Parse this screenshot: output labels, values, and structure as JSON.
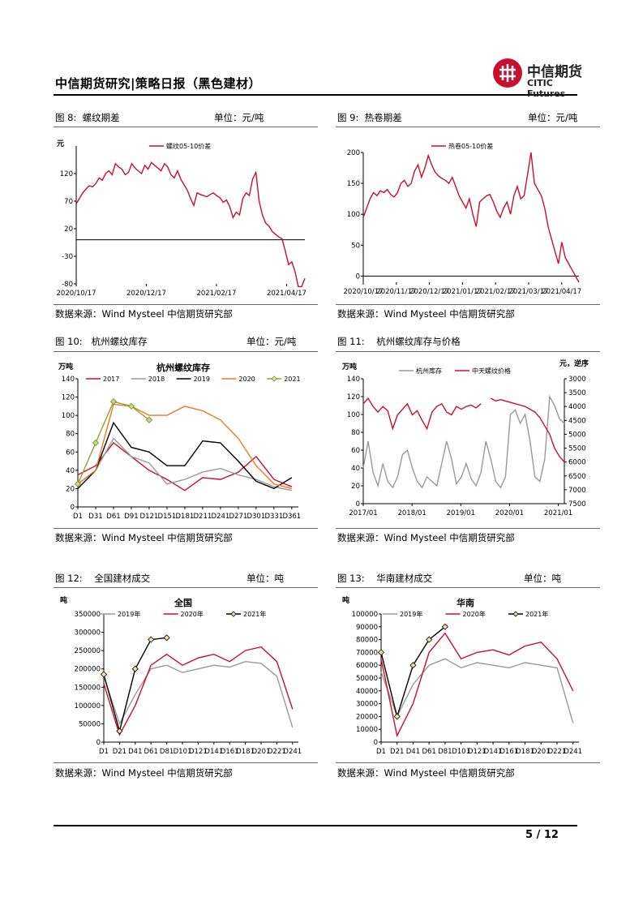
{
  "header": {
    "title": "中信期货研究|策略日报（黑色建材）",
    "logo_cn": "中信期货",
    "logo_en": "CITIC Futures"
  },
  "footer": {
    "page": "5 / 12"
  },
  "colors": {
    "red": "#c8102e",
    "gray": "#999999",
    "black": "#000000",
    "orange": "#f07820",
    "olive": "#8ea33a"
  },
  "figures": [
    {
      "label": "图 8:",
      "title": "螺纹期差",
      "unit": "单位：元/吨",
      "source": "数据来源：Wind Mysteel 中信期货研究部"
    },
    {
      "label": "图 9:",
      "title": "热卷期差",
      "unit": "单位：元/吨",
      "source": "数据来源：Wind Mysteel 中信期货研究部"
    },
    {
      "label": "图 10:",
      "title": "杭州螺纹库存",
      "unit": "单位：元/吨",
      "source": "数据来源：Wind Mysteel 中信期货研究部"
    },
    {
      "label": "图 11:",
      "title": "杭州螺纹库存与价格",
      "unit": "",
      "source": "数据来源：Wind Mysteel 中信期货研究部"
    },
    {
      "label": "图 12:",
      "title": "全国建材成交",
      "unit": "单位：吨",
      "source": "数据来源：Wind Mysteel 中信期货研究部"
    },
    {
      "label": "图 13:",
      "title": "华南建材成交",
      "unit": "单位：吨",
      "source": "数据来源：Wind Mysteel 中信期货研究部"
    }
  ],
  "chart_data": [
    {
      "type": "line",
      "title": "",
      "ylabel": "元",
      "ylim": [
        -80,
        170
      ],
      "yticks": [
        -80,
        -30,
        20,
        70,
        120
      ],
      "xticks": [
        "2020/10/17",
        "2020/12/17",
        "2021/02/17",
        "2021/04/17"
      ],
      "zero_line": 0,
      "series": [
        {
          "name": "螺纹05-10价差",
          "color": "#c8102e",
          "values": [
            65,
            75,
            85,
            92,
            98,
            96,
            102,
            112,
            108,
            120,
            125,
            118,
            138,
            132,
            128,
            118,
            122,
            138,
            130,
            125,
            120,
            135,
            128,
            140,
            135,
            130,
            125,
            138,
            132,
            118,
            112,
            125,
            110,
            100,
            90,
            75,
            62,
            85,
            82,
            80,
            78,
            82,
            85,
            80,
            76,
            68,
            72,
            60,
            40,
            50,
            45,
            75,
            85,
            80,
            110,
            122,
            70,
            45,
            30,
            25,
            15,
            10,
            5,
            2,
            -20,
            -45,
            -40,
            -58,
            -85,
            -85,
            -70
          ]
        }
      ]
    },
    {
      "type": "line",
      "title": "",
      "ylabel": "",
      "ylim": [
        -10,
        200
      ],
      "yticks": [
        0,
        50,
        100,
        150,
        200
      ],
      "xticks": [
        "2020/10/17",
        "2020/11/17",
        "2020/12/17",
        "2021/01/17",
        "2021/02/17",
        "2021/03/17",
        "2021/04/17"
      ],
      "zero_line": 0,
      "series": [
        {
          "name": "热卷05-10价差",
          "color": "#c8102e",
          "values": [
            95,
            110,
            125,
            135,
            130,
            138,
            135,
            140,
            132,
            128,
            135,
            150,
            155,
            145,
            150,
            170,
            180,
            160,
            175,
            195,
            180,
            168,
            162,
            158,
            155,
            150,
            160,
            145,
            130,
            120,
            110,
            125,
            100,
            80,
            120,
            125,
            130,
            132,
            120,
            105,
            95,
            110,
            120,
            100,
            130,
            145,
            125,
            130,
            165,
            200,
            150,
            140,
            130,
            110,
            80,
            60,
            40,
            20,
            55,
            30,
            20,
            10,
            0,
            -10
          ]
        }
      ]
    },
    {
      "type": "line",
      "title": "杭州螺纹库存",
      "ylabel": "万吨",
      "ylim": [
        0,
        140
      ],
      "yticks": [
        0,
        20,
        40,
        60,
        80,
        100,
        120,
        140
      ],
      "xticks": [
        "D1",
        "D31",
        "D61",
        "D91",
        "D121",
        "D151",
        "D181",
        "D211",
        "D241",
        "D271",
        "D301",
        "D331",
        "D361"
      ],
      "x": [
        1,
        31,
        61,
        91,
        121,
        151,
        181,
        211,
        241,
        271,
        301,
        331,
        361
      ],
      "series": [
        {
          "name": "2017",
          "color": "#c8102e",
          "values": [
            35,
            45,
            70,
            55,
            40,
            30,
            18,
            32,
            30,
            38,
            55,
            30,
            22
          ]
        },
        {
          "name": "2018",
          "color": "#999999",
          "values": [
            25,
            40,
            75,
            55,
            48,
            25,
            30,
            38,
            42,
            35,
            30,
            22,
            18
          ]
        },
        {
          "name": "2019",
          "color": "#000000",
          "values": [
            20,
            40,
            92,
            65,
            60,
            45,
            45,
            72,
            70,
            50,
            28,
            20,
            32
          ]
        },
        {
          "name": "2020",
          "color": "#f07820",
          "values": [
            25,
            40,
            112,
            110,
            100,
            100,
            110,
            105,
            95,
            75,
            45,
            25,
            20
          ]
        },
        {
          "name": "2021",
          "color": "#8ea33a",
          "values": [
            25,
            70,
            115,
            110,
            95,
            null,
            null,
            null,
            null,
            null,
            null,
            null,
            null
          ]
        }
      ]
    },
    {
      "type": "line",
      "title": "",
      "ylabel": "万吨",
      "y2label": "元，逆序",
      "ylim": [
        0,
        140
      ],
      "y2lim": [
        3000,
        7500
      ],
      "yticks": [
        0,
        20,
        40,
        60,
        80,
        100,
        120,
        140
      ],
      "y2ticks": [
        3000,
        3500,
        4000,
        4500,
        5000,
        5500,
        6000,
        6500,
        7000,
        7500
      ],
      "xticks": [
        "2017/01",
        "2018/01",
        "2019/01",
        "2020/01",
        "2021/01"
      ],
      "series": [
        {
          "name": "杭州库存",
          "color": "#999999",
          "axis": "left",
          "values": [
            40,
            70,
            35,
            20,
            45,
            25,
            18,
            30,
            55,
            60,
            40,
            25,
            18,
            30,
            25,
            20,
            45,
            70,
            50,
            22,
            30,
            45,
            28,
            20,
            35,
            70,
            50,
            25,
            18,
            30,
            100,
            105,
            90,
            100,
            70,
            30,
            25,
            50,
            120,
            110,
            95,
            90
          ]
        },
        {
          "name": "中天螺纹价格",
          "color": "#c8102e",
          "axis": "right",
          "values": [
            3900,
            3700,
            4000,
            4200,
            4000,
            4150,
            4800,
            4300,
            4100,
            3900,
            4300,
            4150,
            4500,
            4800,
            4200,
            4000,
            3900,
            4200,
            4300,
            4000,
            4100,
            4000,
            3950,
            4050,
            3900,
            null,
            3700,
            3800,
            3750,
            3800,
            3850,
            3900,
            3950,
            4000,
            4100,
            4200,
            4400,
            4700,
            5000,
            5500,
            5800,
            6000
          ]
        }
      ]
    },
    {
      "type": "line",
      "title": "全国",
      "ylabel": "吨",
      "ylim": [
        0,
        350000
      ],
      "yticks": [
        0,
        50000,
        100000,
        150000,
        200000,
        250000,
        300000,
        350000
      ],
      "xticks": [
        "D1",
        "D21",
        "D41",
        "D61",
        "D81",
        "D101",
        "D121",
        "D141",
        "D161",
        "D181",
        "D201",
        "D221",
        "D241"
      ],
      "x": [
        1,
        21,
        41,
        61,
        81,
        101,
        121,
        141,
        161,
        181,
        201,
        221,
        241
      ],
      "series": [
        {
          "name": "2019年",
          "color": "#999999",
          "values": [
            180000,
            50000,
            130000,
            200000,
            210000,
            190000,
            200000,
            210000,
            205000,
            220000,
            215000,
            180000,
            40000
          ]
        },
        {
          "name": "2020年",
          "color": "#c8102e",
          "values": [
            160000,
            20000,
            100000,
            210000,
            240000,
            210000,
            230000,
            240000,
            220000,
            250000,
            260000,
            220000,
            90000
          ]
        },
        {
          "name": "2021年",
          "color": "#000000",
          "values": [
            185000,
            30000,
            200000,
            280000,
            285000,
            null,
            null,
            null,
            null,
            null,
            null,
            null,
            null
          ]
        }
      ]
    },
    {
      "type": "line",
      "title": "华南",
      "ylabel": "吨",
      "ylim": [
        0,
        100000
      ],
      "yticks": [
        0,
        10000,
        20000,
        30000,
        40000,
        50000,
        60000,
        70000,
        80000,
        90000,
        100000
      ],
      "xticks": [
        "D1",
        "D21",
        "D41",
        "D61",
        "D81",
        "D101",
        "D121",
        "D141",
        "D161",
        "D181",
        "D201",
        "D221",
        "D241"
      ],
      "x": [
        1,
        21,
        41,
        61,
        81,
        101,
        121,
        141,
        161,
        181,
        201,
        221,
        241
      ],
      "series": [
        {
          "name": "2019年",
          "color": "#999999",
          "values": [
            55000,
            20000,
            45000,
            60000,
            65000,
            58000,
            62000,
            60000,
            58000,
            62000,
            60000,
            58000,
            15000
          ]
        },
        {
          "name": "2020年",
          "color": "#c8102e",
          "values": [
            65000,
            5000,
            30000,
            70000,
            85000,
            65000,
            70000,
            72000,
            68000,
            75000,
            78000,
            65000,
            40000
          ]
        },
        {
          "name": "2021年",
          "color": "#000000",
          "values": [
            70000,
            20000,
            60000,
            80000,
            90000,
            null,
            null,
            null,
            null,
            null,
            null,
            null,
            null
          ]
        }
      ]
    }
  ]
}
